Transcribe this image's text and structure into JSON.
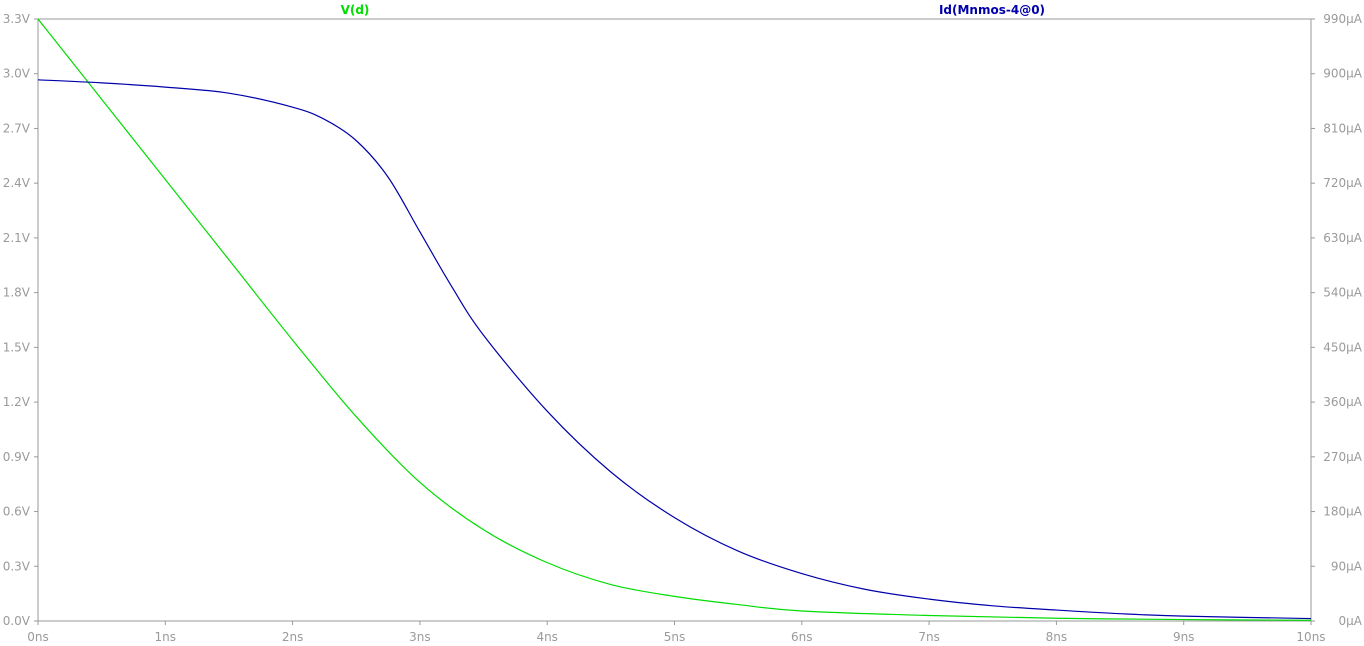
{
  "chart_data": {
    "type": "line",
    "x": {
      "unit": "ns",
      "lim": [
        0,
        10
      ],
      "ticks": [
        0,
        1,
        2,
        3,
        4,
        5,
        6,
        7,
        8,
        9,
        10
      ],
      "tick_labels": [
        "0ns",
        "1ns",
        "2ns",
        "3ns",
        "4ns",
        "5ns",
        "6ns",
        "7ns",
        "8ns",
        "9ns",
        "10ns"
      ]
    },
    "y_left": {
      "unit": "V",
      "lim": [
        0,
        3.3
      ],
      "ticks": [
        0,
        0.3,
        0.6,
        0.9,
        1.2,
        1.5,
        1.8,
        2.1,
        2.4,
        2.7,
        3.0,
        3.3
      ],
      "tick_labels": [
        "0.0V",
        "0.3V",
        "0.6V",
        "0.9V",
        "1.2V",
        "1.5V",
        "1.8V",
        "2.1V",
        "2.4V",
        "2.7V",
        "3.0V",
        "3.3V"
      ]
    },
    "y_right": {
      "unit": "µA",
      "lim": [
        0,
        990
      ],
      "ticks": [
        0,
        90,
        180,
        270,
        360,
        450,
        540,
        630,
        720,
        810,
        900,
        990
      ],
      "tick_labels": [
        "0µA",
        "90µA",
        "180µA",
        "270µA",
        "360µA",
        "450µA",
        "540µA",
        "630µA",
        "720µA",
        "810µA",
        "900µA",
        "990µA"
      ]
    },
    "grid": false,
    "series": [
      {
        "name": "V(d)",
        "axis": "left",
        "color": "#00dd00",
        "x": [
          0,
          0.5,
          1.0,
          1.5,
          2.0,
          2.5,
          3.0,
          3.5,
          4.0,
          4.5,
          5.0,
          5.5,
          6.0,
          7.0,
          8.0,
          9.0,
          10.0
        ],
        "y": [
          3.3,
          2.86,
          2.42,
          1.98,
          1.54,
          1.12,
          0.76,
          0.5,
          0.32,
          0.2,
          0.135,
          0.09,
          0.055,
          0.03,
          0.015,
          0.008,
          0.004
        ]
      },
      {
        "name": "Id(Mnmos-4@0)",
        "axis": "right",
        "color": "#0000aa",
        "x": [
          0,
          0.5,
          1.0,
          1.5,
          2.0,
          2.25,
          2.5,
          2.75,
          3.0,
          3.25,
          3.5,
          4.0,
          4.5,
          5.0,
          5.5,
          6.0,
          6.5,
          7.0,
          7.5,
          8.0,
          8.5,
          9.0,
          10.0
        ],
        "y": [
          890,
          885,
          878,
          868,
          845,
          825,
          790,
          730,
          640,
          550,
          470,
          345,
          245,
          170,
          115,
          78,
          52,
          36,
          25,
          18,
          12,
          8,
          4
        ]
      }
    ]
  }
}
